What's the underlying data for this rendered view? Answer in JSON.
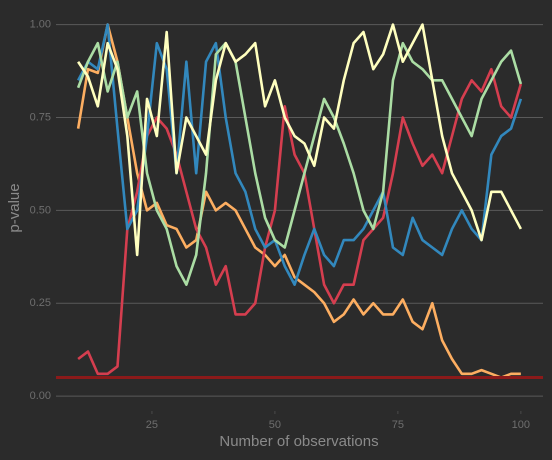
{
  "chart_data": {
    "type": "line",
    "x_label": "Number of observations",
    "y_label": "p-value",
    "x": [
      10,
      12,
      14,
      16,
      18,
      20,
      22,
      24,
      26,
      28,
      30,
      32,
      34,
      36,
      38,
      40,
      42,
      44,
      46,
      48,
      50,
      52,
      54,
      56,
      58,
      60,
      62,
      64,
      66,
      68,
      70,
      72,
      74,
      76,
      78,
      80,
      82,
      84,
      86,
      88,
      90,
      92,
      94,
      96,
      98,
      100
    ],
    "series": [
      {
        "color": "#fdae61",
        "values": [
          0.72,
          0.88,
          0.87,
          1.0,
          0.9,
          0.75,
          0.6,
          0.5,
          0.52,
          0.46,
          0.45,
          0.4,
          0.42,
          0.55,
          0.5,
          0.52,
          0.5,
          0.45,
          0.4,
          0.38,
          0.35,
          0.38,
          0.32,
          0.3,
          0.28,
          0.25,
          0.2,
          0.22,
          0.26,
          0.22,
          0.25,
          0.22,
          0.22,
          0.26,
          0.2,
          0.18,
          0.25,
          0.15,
          0.1,
          0.06,
          0.06,
          0.07,
          0.06,
          0.05,
          0.06,
          0.06
        ]
      },
      {
        "color": "#d53e4f",
        "values": [
          0.1,
          0.12,
          0.06,
          0.06,
          0.08,
          0.45,
          0.55,
          0.7,
          0.75,
          0.72,
          0.65,
          0.55,
          0.45,
          0.4,
          0.3,
          0.35,
          0.22,
          0.22,
          0.25,
          0.4,
          0.5,
          0.78,
          0.65,
          0.6,
          0.45,
          0.3,
          0.25,
          0.3,
          0.3,
          0.42,
          0.45,
          0.48,
          0.6,
          0.75,
          0.68,
          0.62,
          0.65,
          0.6,
          0.7,
          0.8,
          0.85,
          0.82,
          0.88,
          0.78,
          0.75,
          0.84
        ]
      },
      {
        "color": "#3288bd",
        "values": [
          0.85,
          0.9,
          0.88,
          1.0,
          0.72,
          0.45,
          0.5,
          0.7,
          0.95,
          0.88,
          0.6,
          0.9,
          0.6,
          0.9,
          0.95,
          0.75,
          0.6,
          0.55,
          0.45,
          0.4,
          0.42,
          0.35,
          0.3,
          0.38,
          0.45,
          0.38,
          0.35,
          0.42,
          0.42,
          0.45,
          0.5,
          0.55,
          0.4,
          0.38,
          0.48,
          0.42,
          0.4,
          0.38,
          0.45,
          0.5,
          0.45,
          0.42,
          0.65,
          0.7,
          0.72,
          0.8
        ]
      },
      {
        "color": "#abdda4",
        "values": [
          0.83,
          0.9,
          0.95,
          0.82,
          0.9,
          0.75,
          0.82,
          0.6,
          0.5,
          0.45,
          0.35,
          0.3,
          0.38,
          0.6,
          0.92,
          0.95,
          0.9,
          0.75,
          0.6,
          0.48,
          0.42,
          0.4,
          0.5,
          0.6,
          0.7,
          0.8,
          0.75,
          0.68,
          0.6,
          0.5,
          0.45,
          0.55,
          0.85,
          0.95,
          0.9,
          0.88,
          0.85,
          0.85,
          0.8,
          0.75,
          0.7,
          0.8,
          0.85,
          0.9,
          0.93,
          0.84
        ]
      },
      {
        "color": "#ffffbf",
        "values": [
          0.9,
          0.86,
          0.78,
          0.95,
          0.88,
          0.7,
          0.38,
          0.8,
          0.7,
          0.98,
          0.6,
          0.75,
          0.7,
          0.65,
          0.85,
          0.95,
          0.9,
          0.92,
          0.95,
          0.78,
          0.85,
          0.75,
          0.7,
          0.68,
          0.62,
          0.75,
          0.72,
          0.85,
          0.95,
          0.98,
          0.88,
          0.92,
          1.0,
          0.9,
          0.95,
          1.0,
          0.85,
          0.7,
          0.6,
          0.55,
          0.5,
          0.42,
          0.55,
          0.55,
          0.5,
          0.45
        ]
      }
    ],
    "hline": {
      "value": 0.05,
      "color": "#8b1a1a"
    },
    "xlim": [
      5.5,
      104.5
    ],
    "xticks": [
      25,
      50,
      75,
      100
    ],
    "ylim": [
      -0.04,
      1.05
    ],
    "yticks": [
      {
        "value": 0,
        "label": "0.00"
      },
      {
        "value": 0.25,
        "label": "0.25"
      },
      {
        "value": 0.5,
        "label": "0.50"
      },
      {
        "value": 0.75,
        "label": "0.75"
      },
      {
        "value": 1,
        "label": "1.00"
      }
    ],
    "grid": true
  }
}
